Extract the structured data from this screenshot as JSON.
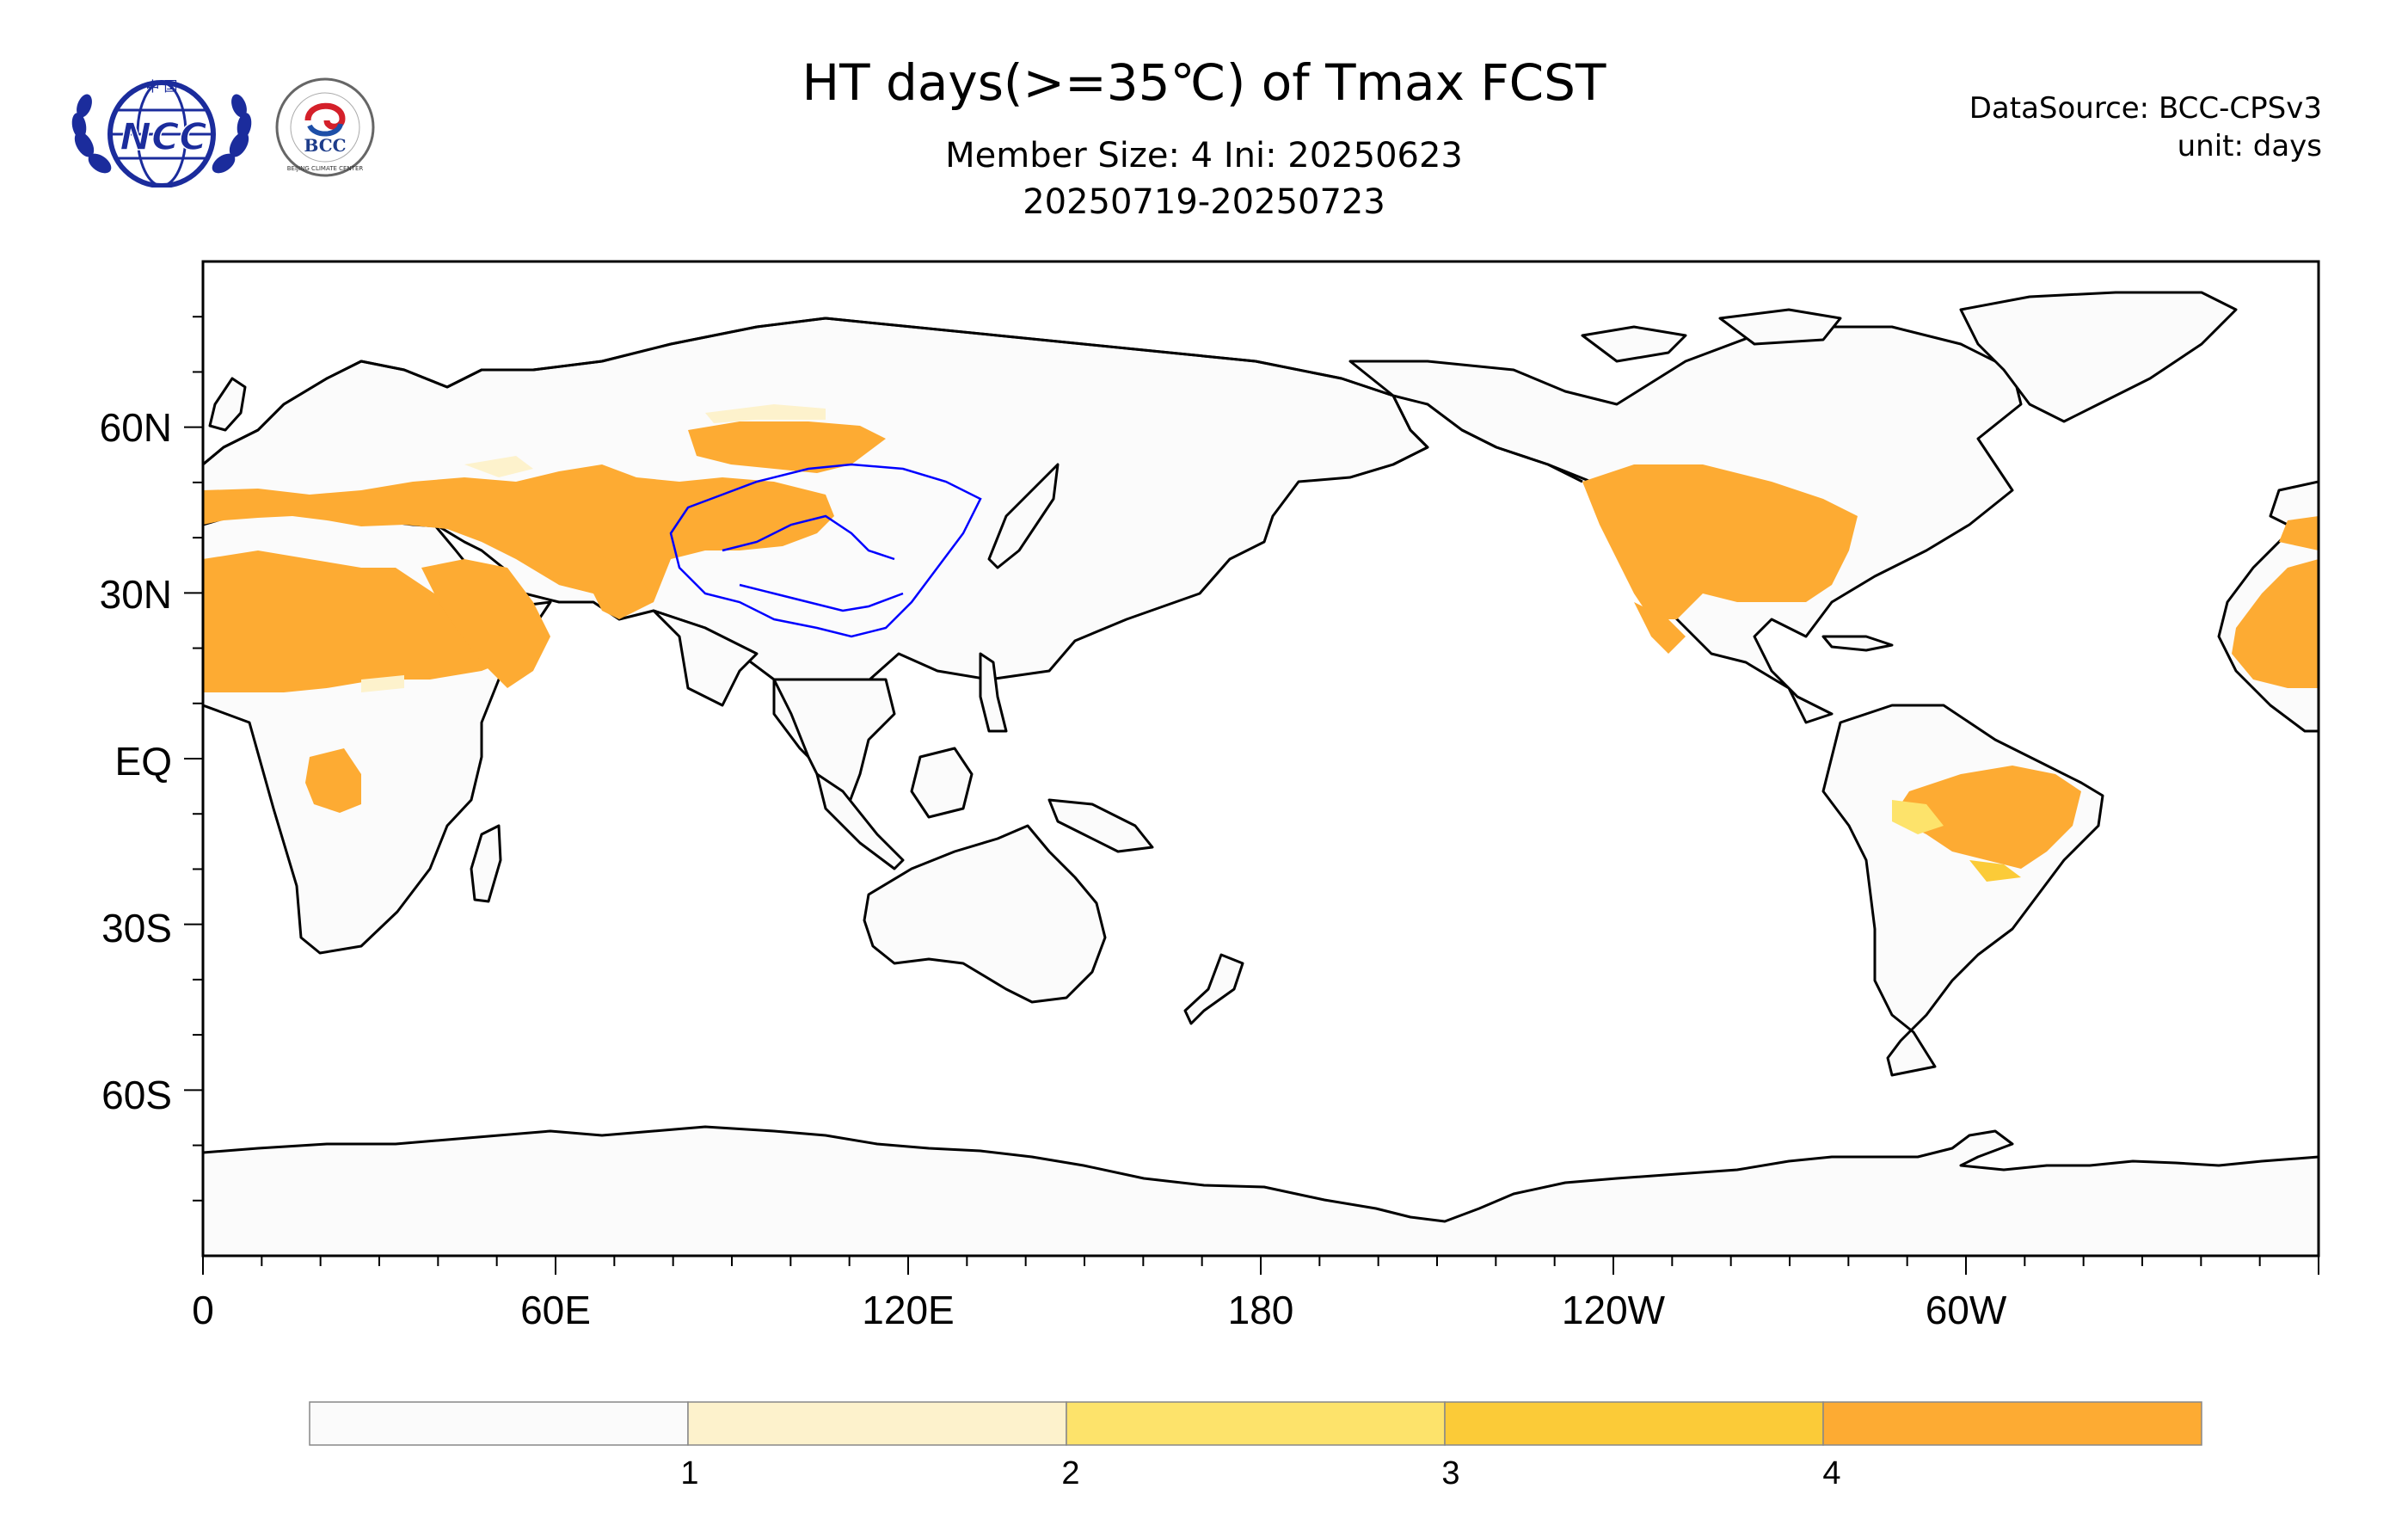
{
  "title": "HT days(>=35℃) of Tmax FCST",
  "subtitle": "Member Size: 4  Ini: 20250623",
  "date_range": "20250719-20250723",
  "datasource": "DataSource: BCC-CPSv3",
  "unit": "unit: days",
  "logos": {
    "ncc": {
      "text": "NCC",
      "seal_text": "中 国"
    },
    "bcc": {
      "text": "BCC",
      "ring_text": "BEIJING CLIMATE CENTER"
    }
  },
  "axes": {
    "y_ticks": [
      "60N",
      "30N",
      "EQ",
      "30S",
      "60S"
    ],
    "x_ticks": [
      "0",
      "60E",
      "120E",
      "180",
      "120W",
      "60W"
    ]
  },
  "colorbar": {
    "colors": [
      "#fbfbfb",
      "#fdf2cc",
      "#fde36b",
      "#fbcb38",
      "#fdab33"
    ],
    "tick_labels": [
      "1",
      "2",
      "3",
      "4"
    ]
  },
  "colors": {
    "land": "#fbfbfb",
    "coast": "#000000",
    "rivers": "#0000ff"
  }
}
